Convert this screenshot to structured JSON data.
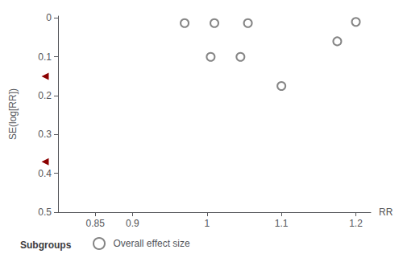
{
  "chart_data": {
    "type": "scatter",
    "xlabel": "RR",
    "ylabel": "SE(log[RR])",
    "xlim": [
      0.8,
      1.22
    ],
    "ylim": [
      0.5,
      -0.005
    ],
    "xticks": [
      0.85,
      0.9,
      1,
      1.1,
      1.2
    ],
    "yticks": [
      0,
      0.1,
      0.2,
      0.3,
      0.4,
      0.5
    ],
    "x": [
      0.97,
      1.01,
      1.055,
      1.005,
      1.045,
      1.1,
      1.175,
      1.2
    ],
    "series": [
      {
        "name": "Overall effect size",
        "color": "#666666",
        "marker": "open-circle",
        "values": [
          0.013,
          0.013,
          0.013,
          0.1,
          0.1,
          0.175,
          0.06,
          0.01
        ]
      }
    ],
    "arrows": {
      "y": [
        0.15,
        0.37
      ],
      "color": "#8B0000",
      "marker": "triangle-left"
    },
    "legend_title": "Subgroups",
    "legend": "bottom",
    "grid": false
  }
}
